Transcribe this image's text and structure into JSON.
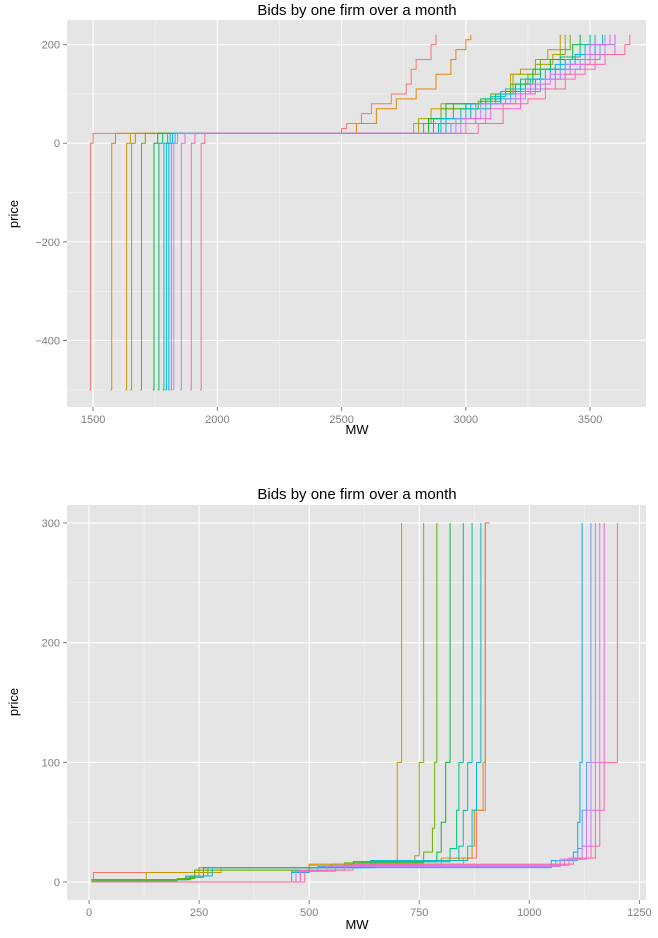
{
  "chart_data": [
    {
      "type": "line",
      "title": "Bids by one firm over a month",
      "xlabel": "MW",
      "ylabel": "price",
      "xlim": [
        1395,
        3725
      ],
      "ylim": [
        -535,
        250
      ],
      "x_ticks": [
        1500,
        2000,
        2500,
        3000,
        3500
      ],
      "y_ticks": [
        200,
        0,
        -200,
        -400
      ],
      "y_tick_labels": [
        "200",
        "0",
        "−200",
        "−400"
      ],
      "grid": true,
      "legend": "none",
      "colors": [
        "#F8766D",
        "#E58700",
        "#C99800",
        "#A3A500",
        "#6BB100",
        "#00BA38",
        "#00BF7D",
        "#00C0AF",
        "#00BCD8",
        "#00B0F6",
        "#619CFF",
        "#B983FF",
        "#E76BF3",
        "#FD61D1",
        "#FF67A4"
      ],
      "series": [
        {
          "x": [
            1485,
            1490,
            1500,
            2280,
            2500,
            2520,
            2580,
            2620,
            2700,
            2760,
            2780,
            2800,
            2860,
            2880
          ],
          "y": [
            -500,
            0,
            20,
            20,
            30,
            40,
            60,
            80,
            100,
            120,
            150,
            170,
            200,
            220
          ]
        },
        {
          "x": [
            1570,
            1575,
            1590,
            2400,
            2560,
            2640,
            2720,
            2800,
            2880,
            2940,
            2960,
            3000,
            3020
          ],
          "y": [
            -500,
            0,
            20,
            20,
            40,
            70,
            90,
            110,
            140,
            170,
            190,
            210,
            220
          ]
        },
        {
          "x": [
            1630,
            1635,
            1650,
            2600,
            2790,
            2860,
            3000,
            3060,
            3140,
            3180,
            3220,
            3280,
            3330,
            3380
          ],
          "y": [
            -500,
            0,
            20,
            20,
            40,
            70,
            80,
            85,
            100,
            140,
            150,
            170,
            190,
            220
          ]
        },
        {
          "x": [
            1650,
            1655,
            1670,
            2700,
            2810,
            2900,
            3020,
            3080,
            3140,
            3190,
            3280,
            3350,
            3400
          ],
          "y": [
            -500,
            0,
            20,
            20,
            50,
            80,
            80,
            85,
            100,
            140,
            160,
            180,
            220
          ]
        },
        {
          "x": [
            1690,
            1695,
            1710,
            2650,
            2830,
            2900,
            3050,
            3100,
            3180,
            3250,
            3300,
            3380,
            3420
          ],
          "y": [
            -500,
            0,
            20,
            20,
            40,
            70,
            85,
            100,
            120,
            140,
            170,
            190,
            220
          ]
        },
        {
          "x": [
            1740,
            1745,
            1760,
            2600,
            2850,
            2920,
            3060,
            3120,
            3200,
            3270,
            3340,
            3430,
            3460
          ],
          "y": [
            -500,
            0,
            20,
            20,
            50,
            80,
            90,
            100,
            120,
            150,
            170,
            200,
            220
          ]
        },
        {
          "x": [
            1760,
            1765,
            1780,
            2700,
            2870,
            2950,
            3080,
            3140,
            3220,
            3300,
            3380,
            3460,
            3500
          ],
          "y": [
            -500,
            0,
            20,
            20,
            50,
            80,
            90,
            105,
            130,
            150,
            175,
            200,
            220
          ]
        },
        {
          "x": [
            1780,
            1785,
            1800,
            2750,
            2890,
            2980,
            3100,
            3160,
            3240,
            3320,
            3400,
            3480,
            3520
          ],
          "y": [
            -500,
            0,
            20,
            20,
            40,
            70,
            95,
            110,
            130,
            150,
            170,
            200,
            220
          ]
        },
        {
          "x": [
            1790,
            1795,
            1810,
            2800,
            2900,
            3000,
            3120,
            3180,
            3260,
            3340,
            3420,
            3500,
            3550
          ],
          "y": [
            -500,
            0,
            20,
            20,
            50,
            80,
            90,
            100,
            130,
            150,
            170,
            200,
            220
          ]
        },
        {
          "x": [
            1800,
            1805,
            1820,
            2820,
            2920,
            3020,
            3140,
            3200,
            3280,
            3360,
            3440,
            3520,
            3580
          ],
          "y": [
            -500,
            0,
            20,
            20,
            50,
            80,
            100,
            110,
            130,
            160,
            180,
            200,
            220
          ]
        },
        {
          "x": [
            1810,
            1815,
            1830,
            2850,
            2940,
            3040,
            3160,
            3220,
            3300,
            3380,
            3460,
            3540,
            3600
          ],
          "y": [
            -500,
            0,
            20,
            20,
            40,
            80,
            90,
            105,
            130,
            150,
            170,
            200,
            220
          ]
        },
        {
          "x": [
            1820,
            1825,
            1840,
            2870,
            2960,
            3060,
            3180,
            3240,
            3320,
            3400,
            3480,
            3560
          ],
          "y": [
            -500,
            0,
            20,
            20,
            50,
            80,
            90,
            110,
            130,
            160,
            180,
            220
          ]
        },
        {
          "x": [
            1850,
            1855,
            1870,
            2900,
            2980,
            3080,
            3200,
            3260,
            3340,
            3420,
            3500,
            3580
          ],
          "y": [
            -500,
            0,
            20,
            20,
            40,
            80,
            100,
            120,
            140,
            160,
            200,
            220
          ]
        },
        {
          "x": [
            1890,
            1895,
            1910,
            2950,
            3000,
            3100,
            3220,
            3280,
            3360,
            3440,
            3520,
            3600
          ],
          "y": [
            -500,
            0,
            20,
            20,
            50,
            70,
            100,
            110,
            130,
            150,
            180,
            220
          ]
        },
        {
          "x": [
            1930,
            1935,
            1950,
            3000,
            3050,
            3150,
            3250,
            3320,
            3400,
            3480,
            3560,
            3640,
            3660
          ],
          "y": [
            -500,
            0,
            20,
            20,
            40,
            80,
            90,
            110,
            140,
            160,
            180,
            200,
            220
          ]
        }
      ]
    },
    {
      "type": "line",
      "title": "Bids by one firm over a month",
      "xlabel": "MW",
      "ylabel": "price",
      "xlim": [
        -50,
        1265
      ],
      "ylim": [
        -15,
        315
      ],
      "x_ticks": [
        0,
        250,
        500,
        750,
        1000,
        1250
      ],
      "y_ticks": [
        0,
        100,
        200,
        300
      ],
      "grid": true,
      "legend": "none",
      "colors": [
        "#F8766D",
        "#E58700",
        "#C99800",
        "#A3A500",
        "#6BB100",
        "#00BA38",
        "#00BF7D",
        "#00C0AF",
        "#00BCD8",
        "#00B0F6",
        "#619CFF",
        "#B983FF",
        "#E76BF3",
        "#FD61D1",
        "#FF67A4"
      ],
      "series": [
        {
          "x": [
            10,
            10,
            230,
            250,
            600,
            850,
            880,
            880,
            900,
            900,
            910
          ],
          "y": [
            0,
            8,
            8,
            12,
            15,
            20,
            45,
            60,
            100,
            300,
            300
          ]
        },
        {
          "x": [
            5,
            220,
            240,
            500,
            800,
            870,
            875,
            895,
            900
          ],
          "y": [
            2,
            4,
            10,
            14,
            20,
            30,
            60,
            100,
            300
          ]
        },
        {
          "x": [
            5,
            130,
            130,
            300,
            500,
            700,
            700,
            710,
            710
          ],
          "y": [
            0,
            0,
            8,
            12,
            15,
            18,
            100,
            100,
            300
          ]
        },
        {
          "x": [
            5,
            230,
            250,
            550,
            740,
            750,
            750,
            760,
            760
          ],
          "y": [
            2,
            5,
            12,
            15,
            22,
            40,
            100,
            100,
            300
          ]
        },
        {
          "x": [
            5,
            200,
            240,
            580,
            760,
            780,
            785,
            790
          ],
          "y": [
            1,
            3,
            10,
            16,
            25,
            45,
            100,
            300
          ]
        },
        {
          "x": [
            10,
            230,
            260,
            600,
            790,
            800,
            810,
            820
          ],
          "y": [
            2,
            4,
            12,
            17,
            25,
            50,
            100,
            300
          ]
        },
        {
          "x": [
            8,
            220,
            260,
            620,
            820,
            835,
            840,
            850
          ],
          "y": [
            2,
            5,
            12,
            17,
            28,
            60,
            100,
            300
          ]
        },
        {
          "x": [
            8,
            220,
            270,
            640,
            840,
            850,
            860,
            870
          ],
          "y": [
            2,
            5,
            12,
            18,
            30,
            60,
            100,
            300
          ]
        },
        {
          "x": [
            8,
            220,
            280,
            650,
            860,
            870,
            880,
            890
          ],
          "y": [
            2,
            5,
            12,
            18,
            30,
            60,
            100,
            300
          ]
        },
        {
          "x": [
            10,
            460,
            500,
            1050,
            1100,
            1110,
            1115,
            1120
          ],
          "y": [
            0,
            8,
            12,
            18,
            25,
            50,
            100,
            300
          ]
        },
        {
          "x": [
            10,
            460,
            520,
            1060,
            1110,
            1120,
            1130,
            1140
          ],
          "y": [
            0,
            9,
            13,
            18,
            28,
            60,
            100,
            300
          ]
        },
        {
          "x": [
            10,
            470,
            540,
            1070,
            1120,
            1130,
            1140,
            1150
          ],
          "y": [
            0,
            9,
            13,
            19,
            30,
            60,
            100,
            300
          ]
        },
        {
          "x": [
            10,
            480,
            560,
            1080,
            1130,
            1140,
            1150,
            1160
          ],
          "y": [
            0,
            9,
            14,
            19,
            30,
            60,
            100,
            300
          ]
        },
        {
          "x": [
            10,
            480,
            580,
            1090,
            1140,
            1150,
            1160,
            1170
          ],
          "y": [
            0,
            10,
            14,
            20,
            30,
            60,
            100,
            300
          ]
        },
        {
          "x": [
            10,
            490,
            600,
            1100,
            1150,
            1160,
            1170,
            1200
          ],
          "y": [
            0,
            10,
            15,
            20,
            30,
            60,
            100,
            300
          ]
        }
      ]
    }
  ]
}
